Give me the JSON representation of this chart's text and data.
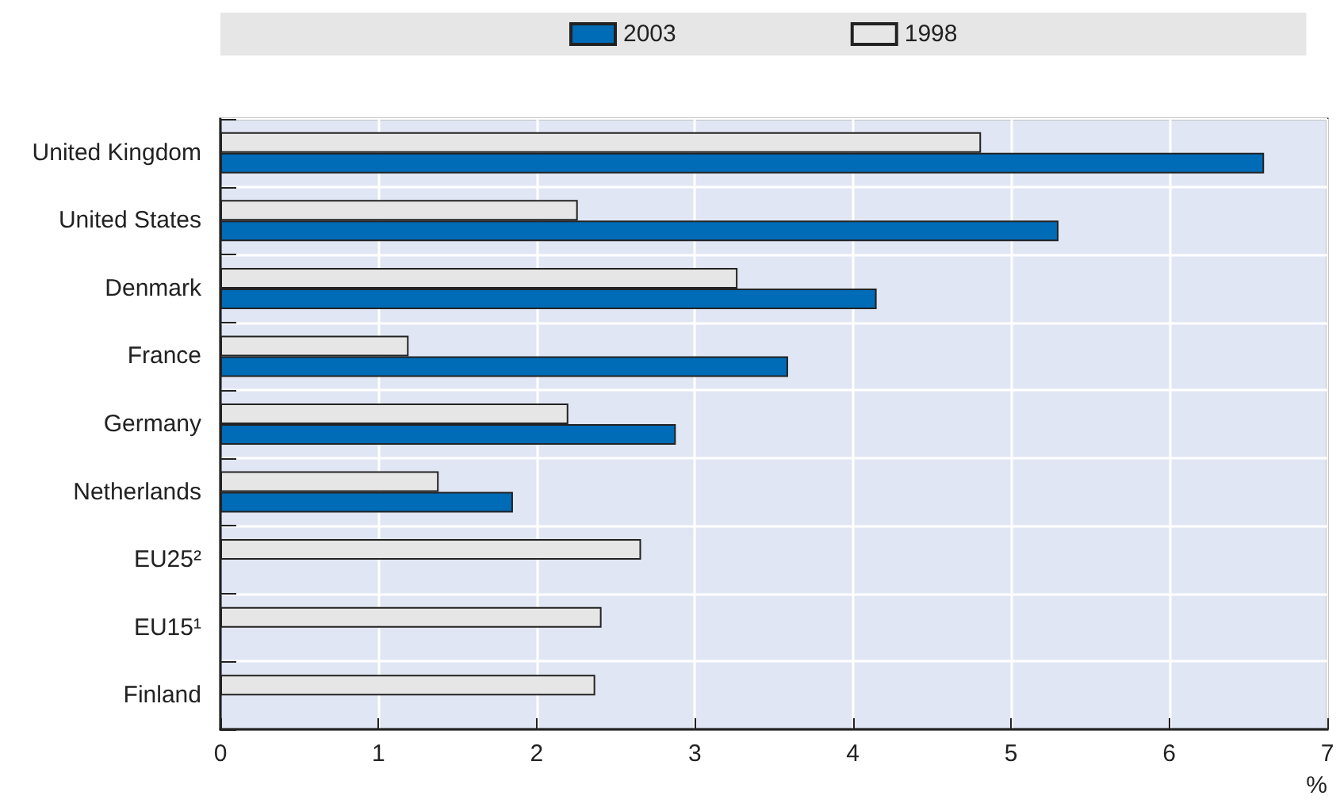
{
  "chart_data": {
    "type": "bar",
    "orientation": "horizontal",
    "categories": [
      "United Kingdom",
      "United States",
      "Denmark",
      "France",
      "Germany",
      "Netherlands",
      "EU25²",
      "EU15¹",
      "Finland"
    ],
    "series": [
      {
        "name": "2003",
        "color": "#006bb6",
        "values": [
          6.6,
          5.3,
          4.15,
          3.59,
          2.88,
          1.85,
          null,
          null,
          null
        ]
      },
      {
        "name": "1998",
        "color": "#e6e6e6",
        "values": [
          4.81,
          2.26,
          3.27,
          1.19,
          2.2,
          1.38,
          2.66,
          2.41,
          2.37
        ]
      }
    ],
    "xlabel": "%",
    "xlim": [
      0,
      7
    ],
    "xticks": [
      0,
      1,
      2,
      3,
      4,
      5,
      6,
      7
    ],
    "grid": true,
    "legend": "top"
  }
}
